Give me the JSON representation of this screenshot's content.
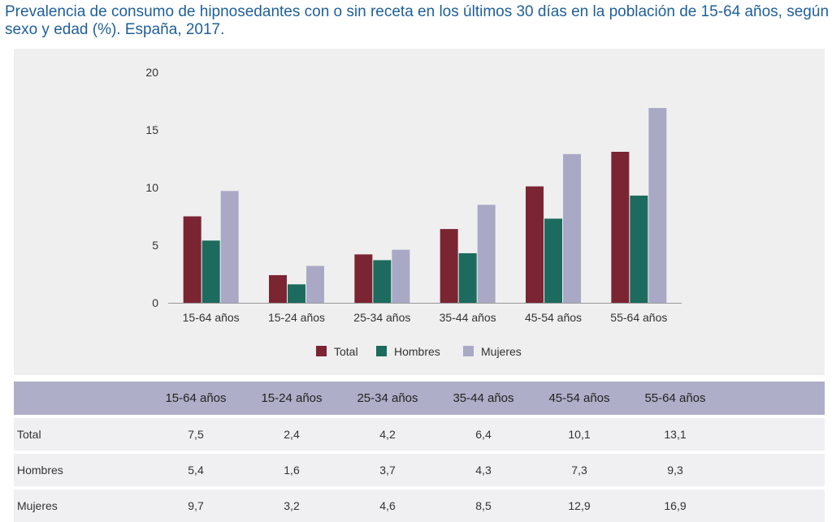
{
  "title": "Prevalencia de consumo de hipnosedantes con o sin receta en los últimos 30 días en la población de 15-64 años, según sexo y edad (%). España, 2017.",
  "colors": {
    "Total": "#7b2533",
    "Hombres": "#1c6b5e",
    "Mujeres": "#a9a9c6"
  },
  "chart_data": {
    "type": "bar",
    "title": "",
    "xlabel": "",
    "ylabel": "",
    "categories": [
      "15-64 años",
      "15-24 años",
      "25-34 años",
      "35-44 años",
      "45-54 años",
      "55-64 años"
    ],
    "series": [
      {
        "name": "Total",
        "values": [
          7.5,
          2.4,
          4.2,
          6.4,
          10.1,
          13.1
        ]
      },
      {
        "name": "Hombres",
        "values": [
          5.4,
          1.6,
          3.7,
          4.3,
          7.3,
          9.3
        ]
      },
      {
        "name": "Mujeres",
        "values": [
          9.7,
          3.2,
          4.6,
          8.5,
          12.9,
          16.9
        ]
      }
    ],
    "ylim": [
      0,
      20
    ],
    "yticks": [
      0,
      5,
      10,
      15,
      20
    ],
    "grid": false,
    "legend": "bottom-center"
  },
  "table": {
    "headers": [
      "15-64 años",
      "15-24 años",
      "25-34 años",
      "35-44 años",
      "45-54 años",
      "55-64 años"
    ],
    "rows": [
      {
        "label": "Total",
        "values": [
          "7,5",
          "2,4",
          "4,2",
          "6,4",
          "10,1",
          "13,1"
        ]
      },
      {
        "label": "Hombres",
        "values": [
          "5,4",
          "1,6",
          "3,7",
          "4,3",
          "7,3",
          "9,3"
        ]
      },
      {
        "label": "Mujeres",
        "values": [
          "9,7",
          "3,2",
          "4,6",
          "8,5",
          "12,9",
          "16,9"
        ]
      }
    ]
  }
}
